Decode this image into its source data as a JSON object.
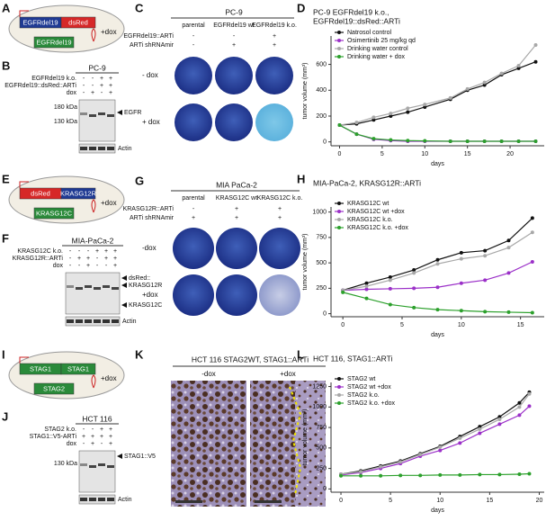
{
  "panels": {
    "A": {
      "letter": "A",
      "boxes": [
        "EGFRdel19",
        "dsRed",
        "EGFRdel19"
      ],
      "dox": "+dox"
    },
    "B": {
      "letter": "B",
      "title": "PC-9",
      "rows": [
        "EGFRdel19 k.o.",
        "EGFRdel19::dsRed::ARTi",
        "dox"
      ],
      "signs": [
        [
          "-",
          "-",
          "+",
          "+"
        ],
        [
          "-",
          "-",
          "+",
          "+"
        ],
        [
          "-",
          "+",
          "-",
          "+"
        ]
      ],
      "markers": [
        "180 kDa",
        "130 kDa"
      ],
      "bands": [
        "EGFR",
        "Actin"
      ]
    },
    "C": {
      "letter": "C",
      "title": "PC-9",
      "cols": [
        "parental",
        "EGFRdel19 wt",
        "EGFRdel19 k.o."
      ],
      "rows": [
        "EGFRdel19::ARTi",
        "ARTi shRNAmir"
      ],
      "signs": [
        [
          "-",
          "-",
          "+"
        ],
        [
          "-",
          "+",
          "+"
        ]
      ],
      "conditions": [
        "- dox",
        "+ dox"
      ]
    },
    "E": {
      "letter": "E",
      "boxes": [
        "dsRed",
        "KRASG12R",
        "KRASG12C"
      ],
      "dox": "+dox"
    },
    "F": {
      "letter": "F",
      "title": "MIA-PaCa-2",
      "rows": [
        "KRASG12C k.o.",
        "KRASG12R::ARTi",
        "dox"
      ],
      "signs": [
        [
          "-",
          "-",
          "-",
          "+",
          "+",
          "+"
        ],
        [
          "-",
          "+",
          "+",
          "-",
          "+",
          "+"
        ],
        [
          "-",
          "-",
          "+",
          "-",
          "-",
          "+"
        ]
      ],
      "bands": [
        "dsRed::",
        "KRASG12R",
        "KRASG12C",
        "Actin"
      ]
    },
    "G": {
      "letter": "G",
      "title": "MIA PaCa-2",
      "cols": [
        "parental",
        "KRASG12C wt",
        "KRASG12C k.o."
      ],
      "rows": [
        "KRASG12R::ARTi",
        "ARTi shRNAmir"
      ],
      "signs": [
        [
          "-",
          "+",
          "+"
        ],
        [
          "+",
          "+",
          "+"
        ]
      ],
      "conditions": [
        "-dox",
        "+dox"
      ]
    },
    "I": {
      "letter": "I",
      "boxes": [
        "STAG1",
        "STAG1",
        "STAG2"
      ],
      "dox": "+dox"
    },
    "J": {
      "letter": "J",
      "title": "HCT 116",
      "rows": [
        "STAG2 k.o.",
        "STAG1::V5-ARTi",
        "dox"
      ],
      "signs": [
        [
          "-",
          "-",
          "+",
          "+"
        ],
        [
          "+",
          "+",
          "+",
          "+"
        ],
        [
          "-",
          "+",
          "-",
          "+"
        ]
      ],
      "markers": [
        "130 kDa"
      ],
      "bands": [
        "STAG1::V5",
        "Actin"
      ]
    },
    "K": {
      "letter": "K",
      "title": "HCT 116 STAG2WT, STAG1::ARTi",
      "conditions": [
        "-dox",
        "+dox"
      ]
    }
  },
  "chart_data": [
    {
      "type": "line",
      "letter": "D",
      "title": "PC-9 EGFRdel19 k.o.,",
      "subtitle": "EGFRdel19::dsRed::ARTi",
      "xlabel": "days",
      "ylabel": "tumor volume (mm³)",
      "x": [
        0,
        2,
        4,
        6,
        8,
        10,
        13,
        15,
        17,
        19,
        21,
        23
      ],
      "xlim": [
        -1,
        24
      ],
      "xticks": [
        0,
        5,
        10,
        15,
        20
      ],
      "ylim": [
        -30,
        820
      ],
      "yticks": [
        0,
        200,
        400,
        600
      ],
      "series": [
        {
          "name": "Natrosol control",
          "color": "#111111",
          "values": [
            130,
            140,
            170,
            200,
            230,
            270,
            330,
            400,
            440,
            520,
            570,
            620
          ]
        },
        {
          "name": "Osimertinib 25 mg/kg qd",
          "color": "#9b30c8",
          "values": [
            130,
            60,
            20,
            10,
            5,
            5,
            5,
            5,
            5,
            5,
            5,
            5
          ]
        },
        {
          "name": "Drinking water control",
          "color": "#a8a8a8",
          "values": [
            130,
            150,
            190,
            220,
            260,
            290,
            340,
            410,
            460,
            530,
            590,
            750
          ]
        },
        {
          "name": "Drinking water + dox",
          "color": "#2ca02c",
          "values": [
            130,
            60,
            25,
            15,
            10,
            8,
            5,
            5,
            5,
            5,
            5,
            5
          ]
        }
      ]
    },
    {
      "type": "line",
      "letter": "H",
      "title": "MIA-PaCa-2, KRASG12R::ARTi",
      "xlabel": "days",
      "ylabel": "tumor volume (mm³)",
      "x": [
        0,
        2,
        4,
        6,
        8,
        10,
        12,
        14,
        16
      ],
      "xlim": [
        -1,
        17
      ],
      "xticks": [
        0,
        5,
        10,
        15
      ],
      "ylim": [
        -30,
        1050
      ],
      "yticks": [
        0,
        250,
        500,
        750,
        1000
      ],
      "series": [
        {
          "name": "KRASG12C wt",
          "color": "#111111",
          "values": [
            230,
            300,
            360,
            430,
            530,
            600,
            620,
            720,
            940
          ]
        },
        {
          "name": "KRASG12C wt +dox",
          "color": "#9b30c8",
          "values": [
            230,
            240,
            245,
            250,
            260,
            300,
            330,
            400,
            510
          ]
        },
        {
          "name": "KRASG12C k.o.",
          "color": "#a8a8a8",
          "values": [
            230,
            270,
            330,
            400,
            490,
            540,
            570,
            650,
            800
          ]
        },
        {
          "name": "KRASG12C k.o. +dox",
          "color": "#2ca02c",
          "values": [
            210,
            150,
            90,
            60,
            40,
            30,
            20,
            15,
            10
          ]
        }
      ]
    },
    {
      "type": "line",
      "letter": "L",
      "title": "HCT 116, STAG1::ARTi",
      "xlabel": "days",
      "ylabel": "tumor volume (mm³)",
      "x": [
        0,
        2,
        4,
        6,
        8,
        10,
        12,
        14,
        16,
        18,
        19
      ],
      "xlim": [
        -1,
        20.5
      ],
      "xticks": [
        0,
        5,
        10,
        15,
        20
      ],
      "ylim": [
        -40,
        1300
      ],
      "yticks": [
        0,
        250,
        500,
        750,
        1000,
        1250
      ],
      "series": [
        {
          "name": "STAG2 wt",
          "color": "#111111",
          "values": [
            180,
            220,
            280,
            340,
            430,
            520,
            640,
            760,
            880,
            1050,
            1180
          ]
        },
        {
          "name": "STAG2 wt +dox",
          "color": "#9b30c8",
          "values": [
            170,
            200,
            250,
            310,
            400,
            470,
            560,
            680,
            790,
            900,
            1010
          ]
        },
        {
          "name": "STAG2 k.o.",
          "color": "#a8a8a8",
          "values": [
            180,
            210,
            270,
            330,
            420,
            510,
            620,
            730,
            850,
            1000,
            1160
          ]
        },
        {
          "name": "STAG2 k.o. +dox",
          "color": "#2ca02c",
          "values": [
            160,
            160,
            160,
            165,
            165,
            170,
            170,
            175,
            175,
            180,
            185
          ]
        }
      ]
    }
  ]
}
